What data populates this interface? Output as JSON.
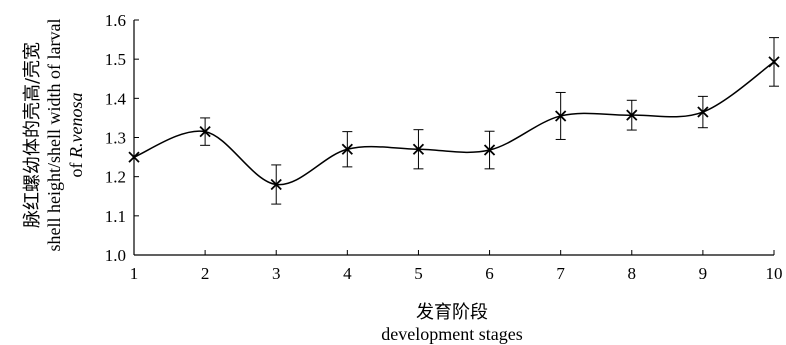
{
  "chart_data": {
    "type": "line",
    "x": [
      1,
      2,
      3,
      4,
      5,
      6,
      7,
      8,
      9,
      10
    ],
    "series": [
      {
        "values": [
          1.25,
          1.315,
          1.18,
          1.27,
          1.27,
          1.268,
          1.355,
          1.357,
          1.365,
          1.493
        ],
        "error": [
          0.0,
          0.035,
          0.05,
          0.045,
          0.05,
          0.048,
          0.06,
          0.038,
          0.04,
          0.062
        ]
      }
    ],
    "xlim": [
      1,
      10
    ],
    "ylim": [
      1.0,
      1.6
    ],
    "x_ticks": [
      "1",
      "2",
      "3",
      "4",
      "5",
      "6",
      "7",
      "8",
      "9",
      "10"
    ],
    "y_ticks": [
      "1.0",
      "1.1",
      "1.2",
      "1.3",
      "1.4",
      "1.5",
      "1.6"
    ],
    "xlabel_zh": "发育阶段",
    "xlabel_en": "development stages",
    "ylabel_zh": "脉红螺幼体的壳高/壳宽",
    "ylabel_en_1": "shell height/shell width of larval",
    "ylabel_en_2_prefix": "of ",
    "ylabel_en_2_italic": "R.venosa",
    "marker": "x",
    "line_color": "#000000",
    "grid": false
  }
}
